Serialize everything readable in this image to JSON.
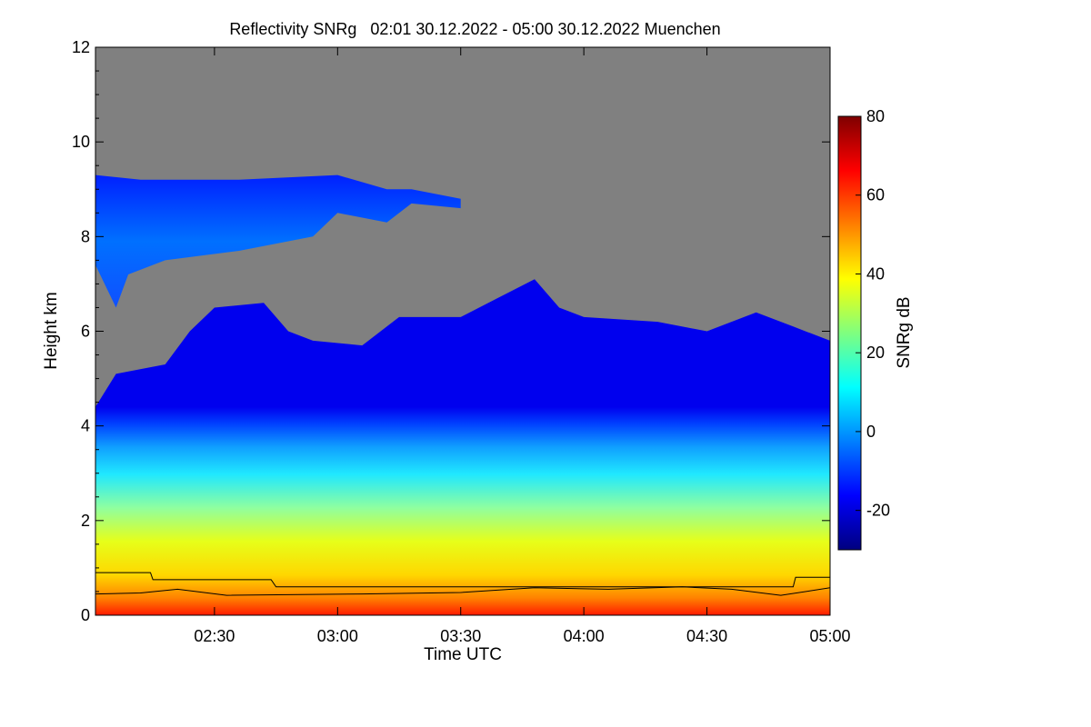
{
  "chart_data": {
    "type": "heatmap",
    "title": "Reflectivity SNRg   02:01 30.12.2022 - 05:00 30.12.2022 Muenchen",
    "xlabel": "Time UTC",
    "ylabel": "Height km",
    "x_range_hours": [
      2.0167,
      5.0
    ],
    "x_ticks": [
      "02:30",
      "03:00",
      "03:30",
      "04:00",
      "04:30",
      "05:00"
    ],
    "ylim": [
      0,
      12
    ],
    "y_ticks": [
      "0",
      "2",
      "4",
      "6",
      "8",
      "10",
      "12"
    ],
    "colorbar": {
      "label": "SNRg dB",
      "range": [
        -30,
        80
      ],
      "ticks": [
        "-20",
        "0",
        "20",
        "40",
        "60",
        "80"
      ],
      "colormap": [
        "#00007f",
        "#0000ff",
        "#007fff",
        "#00ffff",
        "#7fff7f",
        "#ffff00",
        "#ff7f00",
        "#ff0000",
        "#7f0000"
      ]
    },
    "no_signal_color": "#808080",
    "upper_layer_top_km": [
      [
        2.0167,
        9.3
      ],
      [
        2.2,
        9.2
      ],
      [
        2.6,
        9.2
      ],
      [
        3.0,
        9.3
      ],
      [
        3.2,
        9.0
      ],
      [
        3.3,
        9.0
      ],
      [
        3.5,
        8.8
      ]
    ],
    "upper_layer_bottom_km": [
      [
        2.0167,
        7.4
      ],
      [
        2.1,
        6.5
      ],
      [
        2.15,
        7.2
      ],
      [
        2.3,
        7.5
      ],
      [
        2.6,
        7.7
      ],
      [
        2.9,
        8.0
      ],
      [
        3.0,
        8.5
      ],
      [
        3.2,
        8.3
      ],
      [
        3.3,
        8.7
      ],
      [
        3.5,
        8.6
      ]
    ],
    "main_layer_top_km": [
      [
        2.0167,
        4.4
      ],
      [
        2.1,
        5.1
      ],
      [
        2.3,
        5.3
      ],
      [
        2.4,
        6.0
      ],
      [
        2.5,
        6.5
      ],
      [
        2.7,
        6.6
      ],
      [
        2.8,
        6.0
      ],
      [
        2.9,
        5.8
      ],
      [
        3.1,
        5.7
      ],
      [
        3.25,
        6.3
      ],
      [
        3.5,
        6.3
      ],
      [
        3.65,
        6.7
      ],
      [
        3.8,
        7.1
      ],
      [
        3.9,
        6.5
      ],
      [
        4.0,
        6.3
      ],
      [
        4.3,
        6.2
      ],
      [
        4.5,
        6.0
      ],
      [
        4.7,
        6.4
      ],
      [
        4.85,
        6.1
      ],
      [
        5.0,
        5.8
      ]
    ],
    "boundary_line_upper_km": [
      [
        2.0167,
        0.9
      ],
      [
        2.24,
        0.9
      ],
      [
        2.25,
        0.75
      ],
      [
        2.73,
        0.75
      ],
      [
        2.75,
        0.6
      ],
      [
        4.85,
        0.6
      ],
      [
        4.86,
        0.8
      ],
      [
        5.0,
        0.8
      ]
    ],
    "boundary_line_lower_km": [
      [
        2.0167,
        0.45
      ],
      [
        2.2,
        0.47
      ],
      [
        2.35,
        0.55
      ],
      [
        2.55,
        0.42
      ],
      [
        3.1,
        0.45
      ],
      [
        3.5,
        0.48
      ],
      [
        3.8,
        0.58
      ],
      [
        4.1,
        0.55
      ],
      [
        4.4,
        0.6
      ],
      [
        4.6,
        0.55
      ],
      [
        4.8,
        0.42
      ],
      [
        5.0,
        0.58
      ]
    ]
  }
}
